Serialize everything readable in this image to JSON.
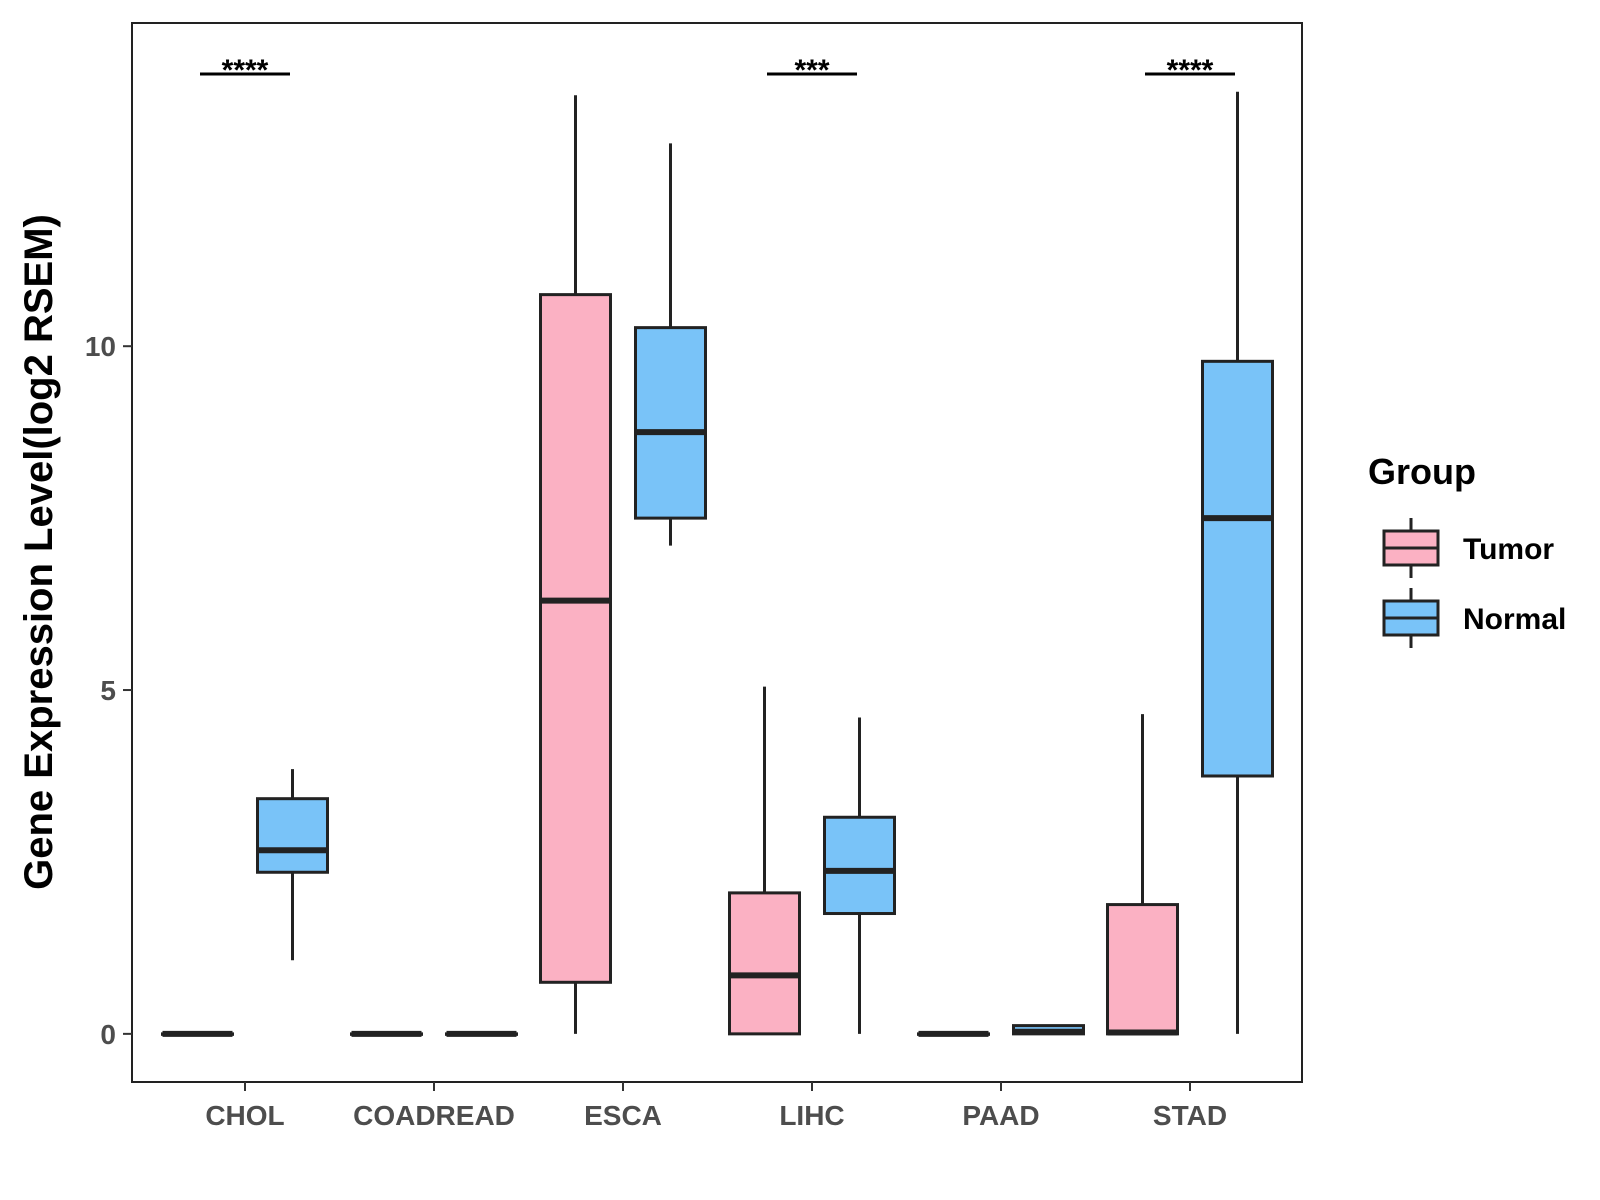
{
  "chart_data": {
    "type": "box",
    "title": "",
    "xlabel": "",
    "ylabel": "Gene Expression Level(log2 RSEM)",
    "ylim": [
      -0.7,
      14.7
    ],
    "yticks": [
      0,
      5,
      10
    ],
    "grid": false,
    "legend": {
      "title": "Group",
      "position": "right",
      "entries": [
        {
          "name": "Tumor",
          "color": "#FBB1C3"
        },
        {
          "name": "Normal",
          "color": "#79C3F8"
        }
      ]
    },
    "categories": [
      "CHOL",
      "COADREAD",
      "ESCA",
      "LIHC",
      "PAAD",
      "STAD"
    ],
    "series": [
      {
        "name": "Tumor",
        "color": "#FBB1C3",
        "boxes": [
          {
            "category": "CHOL",
            "min": 0,
            "q1": 0,
            "median": 0,
            "q3": 0,
            "max": 0
          },
          {
            "category": "COADREAD",
            "min": 0,
            "q1": 0,
            "median": 0,
            "q3": 0,
            "max": 0
          },
          {
            "category": "ESCA",
            "min": 0,
            "q1": 0.75,
            "median": 6.3,
            "q3": 10.75,
            "max": 13.65
          },
          {
            "category": "LIHC",
            "min": 0,
            "q1": 0,
            "median": 0.85,
            "q3": 2.05,
            "max": 5.05
          },
          {
            "category": "PAAD",
            "min": 0,
            "q1": 0,
            "median": 0,
            "q3": 0,
            "max": 0
          },
          {
            "category": "STAD",
            "min": 0,
            "q1": 0,
            "median": 0.02,
            "q3": 1.88,
            "max": 4.65
          }
        ]
      },
      {
        "name": "Normal",
        "color": "#79C3F8",
        "boxes": [
          {
            "category": "CHOL",
            "min": 1.07,
            "q1": 2.35,
            "median": 2.67,
            "q3": 3.42,
            "max": 3.85
          },
          {
            "category": "COADREAD",
            "min": 0,
            "q1": 0,
            "median": 0,
            "q3": 0,
            "max": 0
          },
          {
            "category": "ESCA",
            "min": 7.1,
            "q1": 7.5,
            "median": 8.75,
            "q3": 10.27,
            "max": 12.95
          },
          {
            "category": "LIHC",
            "min": 0,
            "q1": 1.75,
            "median": 2.37,
            "q3": 3.15,
            "max": 4.6
          },
          {
            "category": "PAAD",
            "min": 0,
            "q1": 0,
            "median": 0.03,
            "q3": 0.12,
            "max": 0.12
          },
          {
            "category": "STAD",
            "min": 0,
            "q1": 3.75,
            "median": 7.5,
            "q3": 9.78,
            "max": 13.7
          }
        ]
      }
    ],
    "annotations": [
      {
        "category": "CHOL",
        "label": "****"
      },
      {
        "category": "LIHC",
        "label": "***"
      },
      {
        "category": "STAD",
        "label": "****"
      }
    ]
  }
}
